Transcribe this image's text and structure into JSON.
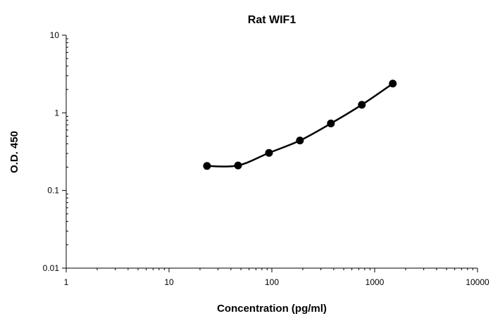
{
  "chart_data": {
    "type": "line",
    "title": "Rat WIF1",
    "xlabel": "Concentration (pg/ml)",
    "ylabel": "O.D. 450",
    "xscale": "log",
    "yscale": "log",
    "xlim": [
      1,
      10000
    ],
    "ylim": [
      0.01,
      10
    ],
    "x_tick_labels": [
      "1",
      "10",
      "100",
      "1000",
      "10000"
    ],
    "y_tick_labels": [
      "0.01",
      "0.1",
      "1",
      "10"
    ],
    "grid": false,
    "legend": "none",
    "series": [
      {
        "x": [
          23.4,
          46.9,
          93.8,
          187.5,
          375,
          750,
          1500
        ],
        "y": [
          0.207,
          0.21,
          0.305,
          0.44,
          0.73,
          1.27,
          2.38
        ],
        "color": "#000000",
        "marker": "circle",
        "smooth": true
      }
    ]
  }
}
